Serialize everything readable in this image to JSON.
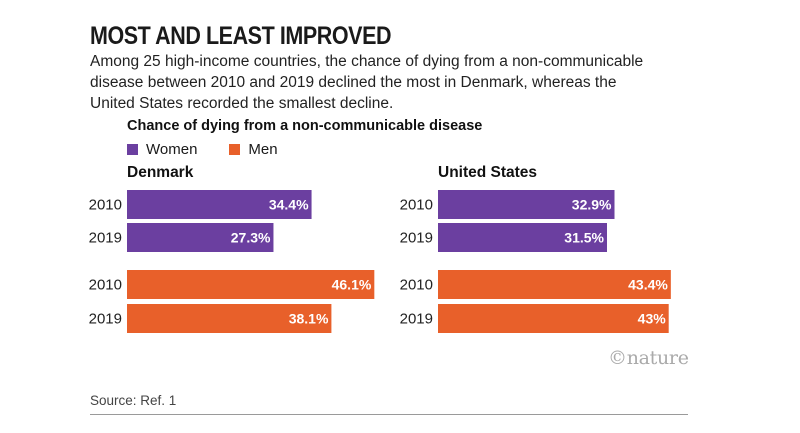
{
  "header": {
    "title": "MOST AND LEAST IMPROVED",
    "subtitle": "Among 25 high-income countries, the chance of dying from a non-communicable disease between 2010 and 2019 declined the most in Denmark, whereas the United States recorded the smallest decline."
  },
  "colors": {
    "women": "#6b3fa0",
    "men": "#e8602a",
    "label": "#ffffff"
  },
  "chart_data": {
    "type": "bar",
    "orientation": "horizontal",
    "title": "Chance of dying from a non-communicable disease",
    "legend": [
      {
        "name": "Women",
        "key": "women"
      },
      {
        "name": "Men",
        "key": "men"
      }
    ],
    "value_suffix": "%",
    "xlim": [
      0,
      50
    ],
    "panels": [
      {
        "name": "Denmark",
        "bars": [
          {
            "series": "women",
            "year": "2010",
            "value": 34.4,
            "label": "34.4%"
          },
          {
            "series": "women",
            "year": "2019",
            "value": 27.3,
            "label": "27.3%"
          },
          {
            "series": "men",
            "year": "2010",
            "value": 46.1,
            "label": "46.1%"
          },
          {
            "series": "men",
            "year": "2019",
            "value": 38.1,
            "label": "38.1%"
          }
        ]
      },
      {
        "name": "United States",
        "bars": [
          {
            "series": "women",
            "year": "2010",
            "value": 32.9,
            "label": "32.9%"
          },
          {
            "series": "women",
            "year": "2019",
            "value": 31.5,
            "label": "31.5%"
          },
          {
            "series": "men",
            "year": "2010",
            "value": 43.4,
            "label": "43.4%"
          },
          {
            "series": "men",
            "year": "2019",
            "value": 43.0,
            "label": "43%"
          }
        ]
      }
    ]
  },
  "branding": {
    "logo": "©nature"
  },
  "footer": {
    "source": "Source: Ref. 1"
  }
}
